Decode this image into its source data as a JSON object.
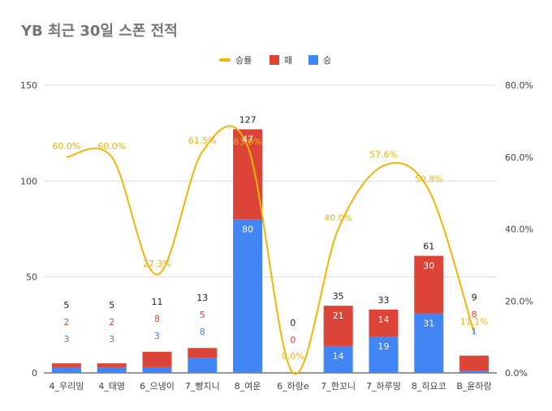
{
  "chart_data": {
    "type": "bar",
    "stacked": true,
    "title": "YB 최근 30일 스폰 전적",
    "categories": [
      "4_우리밍",
      "4_태영",
      "6_으냉이",
      "7_빵지니",
      "8_여운",
      "6_하랑e",
      "7_한꼬니",
      "7_하루땅",
      "8_히요코",
      "B_윤하랑"
    ],
    "series": [
      {
        "name": "승",
        "color": "#4285f4",
        "axis": "left",
        "values": [
          3,
          3,
          3,
          8,
          80,
          0,
          14,
          19,
          31,
          1
        ]
      },
      {
        "name": "패",
        "color": "#db4437",
        "axis": "left",
        "values": [
          2,
          2,
          8,
          5,
          47,
          0,
          21,
          14,
          30,
          8
        ]
      },
      {
        "name": "승률",
        "color": "#f4b400",
        "type": "line",
        "axis": "right",
        "values": [
          60.0,
          60.0,
          27.3,
          61.5,
          63.0,
          0.0,
          40.0,
          57.6,
          50.8,
          11.1
        ]
      }
    ],
    "totals": [
      5,
      5,
      11,
      13,
      127,
      0,
      35,
      33,
      61,
      9
    ],
    "win_labels": [
      "3",
      "3",
      "3",
      "8",
      "80",
      "",
      "14",
      "19",
      "31",
      "1"
    ],
    "loss_labels": [
      "2",
      "2",
      "8",
      "5",
      "47",
      "0",
      "21",
      "14",
      "30",
      "8"
    ],
    "rate_labels": [
      "60.0%",
      "60.0%",
      "27.3%",
      "61.5%",
      "63.0%",
      "0.0%",
      "40.0%",
      "57.6%",
      "50.8%",
      "11.1%"
    ],
    "total_labels": [
      "5",
      "5",
      "11",
      "13",
      "127",
      "0",
      "35",
      "33",
      "61",
      "9"
    ],
    "left_axis": {
      "ylim": [
        0,
        150
      ],
      "ticks": [
        0,
        50,
        100,
        150
      ],
      "tick_labels": [
        "0",
        "50",
        "100",
        "150"
      ]
    },
    "right_axis": {
      "ylim": [
        0,
        80
      ],
      "ticks": [
        0,
        20,
        40,
        60,
        80
      ],
      "tick_labels": [
        "0.0%",
        "20.0%",
        "40.0%",
        "60.0%",
        "80.0%"
      ]
    },
    "legend": {
      "position": "top",
      "items": [
        "승률",
        "패",
        "승"
      ]
    },
    "grid": true,
    "colors": {
      "win": "#4285f4",
      "loss": "#db4437",
      "rate": "#f4b400",
      "grid": "#dddddd",
      "title": "#757575"
    }
  }
}
